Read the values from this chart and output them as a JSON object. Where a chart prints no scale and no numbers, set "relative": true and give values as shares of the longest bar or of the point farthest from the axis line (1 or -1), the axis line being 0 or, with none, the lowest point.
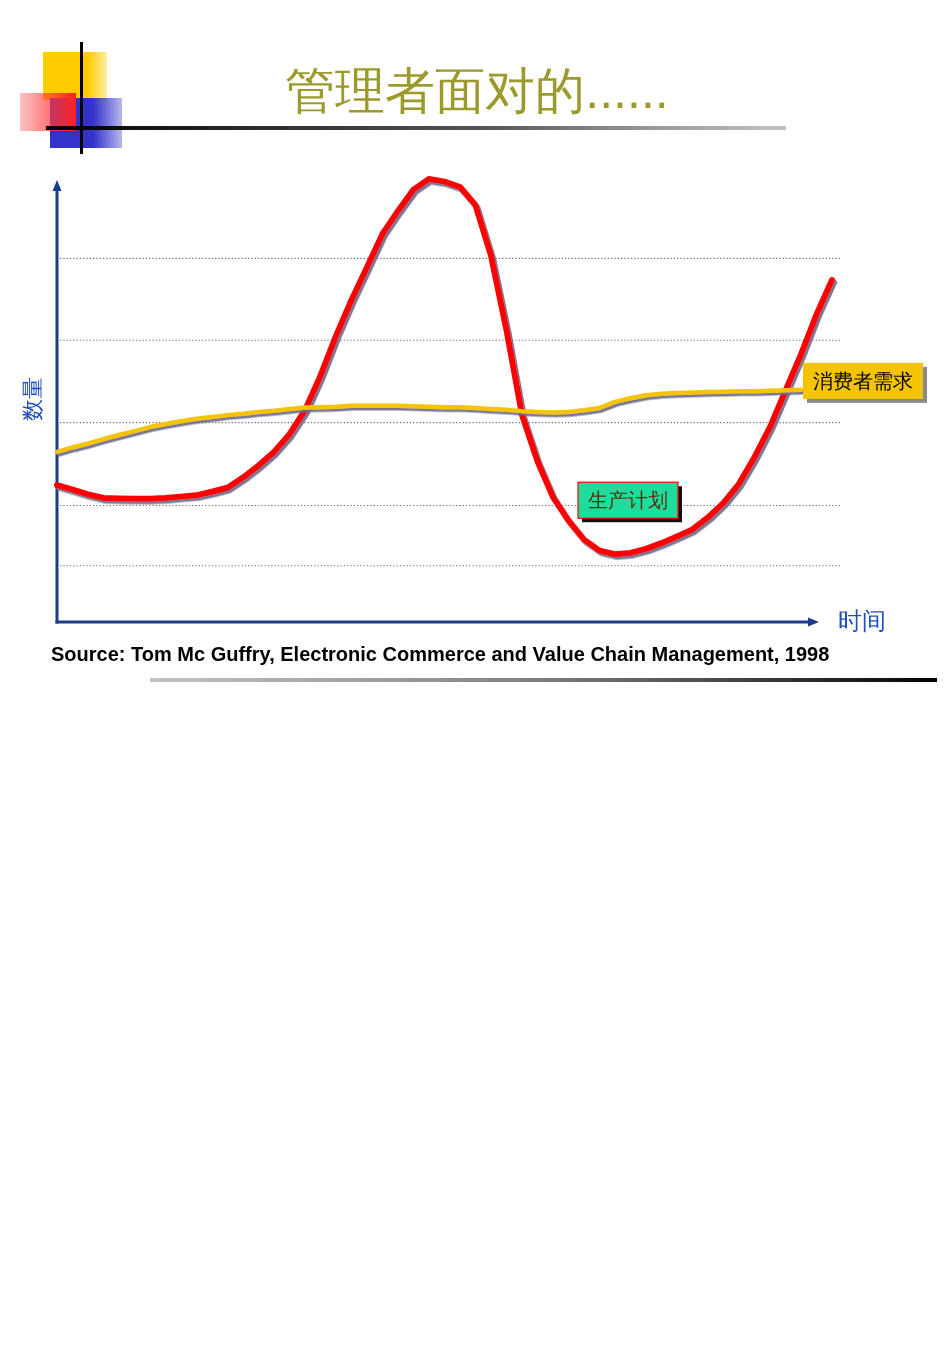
{
  "chart_data": {
    "type": "line",
    "title": "管理者面对的......",
    "xlabel": "时间",
    "ylabel": "数量",
    "relative": true,
    "categories": [
      null,
      null,
      null,
      null,
      null,
      null,
      null,
      null,
      null,
      null,
      null,
      null,
      null,
      null,
      null,
      null,
      null,
      null,
      null,
      null,
      null,
      null,
      null,
      null,
      null,
      null,
      null,
      null,
      null,
      null,
      null,
      null,
      null,
      null,
      null,
      null,
      null,
      null,
      null,
      null,
      null,
      null,
      null,
      null,
      null,
      null,
      null,
      null,
      null,
      null,
      null
    ],
    "series": [
      {
        "name": "生产计划",
        "color": "#ff0000",
        "values": [
          0.309,
          0.299,
          0.288,
          0.28,
          0.279,
          0.278,
          0.278,
          0.28,
          0.283,
          0.286,
          0.294,
          0.303,
          0.326,
          0.353,
          0.384,
          0.424,
          0.478,
          0.556,
          0.646,
          0.727,
          0.801,
          0.876,
          0.928,
          0.976,
          1.0,
          0.994,
          0.982,
          0.941,
          0.827,
          0.659,
          0.468,
          0.363,
          0.282,
          0.229,
          0.186,
          0.161,
          0.153,
          0.156,
          0.165,
          0.178,
          0.193,
          0.209,
          0.236,
          0.269,
          0.312,
          0.372,
          0.44,
          0.522,
          0.604,
          0.694,
          0.772
        ]
      },
      {
        "name": "消费者需求",
        "color": "#f5c400",
        "values": [
          0.384,
          0.394,
          0.403,
          0.413,
          0.422,
          0.431,
          0.44,
          0.447,
          0.453,
          0.459,
          0.463,
          0.467,
          0.47,
          0.474,
          0.477,
          0.481,
          0.484,
          0.485,
          0.486,
          0.488,
          0.488,
          0.488,
          0.488,
          0.487,
          0.486,
          0.485,
          0.485,
          0.483,
          0.481,
          0.479,
          0.476,
          0.474,
          0.473,
          0.474,
          0.478,
          0.483,
          0.497,
          0.505,
          0.512,
          0.515,
          0.517,
          0.518,
          0.519,
          0.52,
          0.521,
          0.521,
          0.522,
          0.523,
          0.524,
          null,
          null
        ]
      }
    ],
    "ref_lines": [
      {
        "axis": "y",
        "value": 0.821,
        "color": "#6e6e8c",
        "line_style": "dotted"
      },
      {
        "axis": "y",
        "value": 0.636,
        "color": "#6e6e8c",
        "line_style": "dotted"
      },
      {
        "axis": "y",
        "value": 0.45,
        "color": "#6e6e8c",
        "line_style": "dotted"
      },
      {
        "axis": "y",
        "value": 0.263,
        "color": "#6e6e8c",
        "line_style": "dotted"
      },
      {
        "axis": "y",
        "value": 0.127,
        "color": "#6e6e8c",
        "line_style": "dotted"
      }
    ],
    "annotations": [
      "Source: Tom Mc Guffry, Electronic Commerce and Value Chain Management, 1998"
    ]
  }
}
